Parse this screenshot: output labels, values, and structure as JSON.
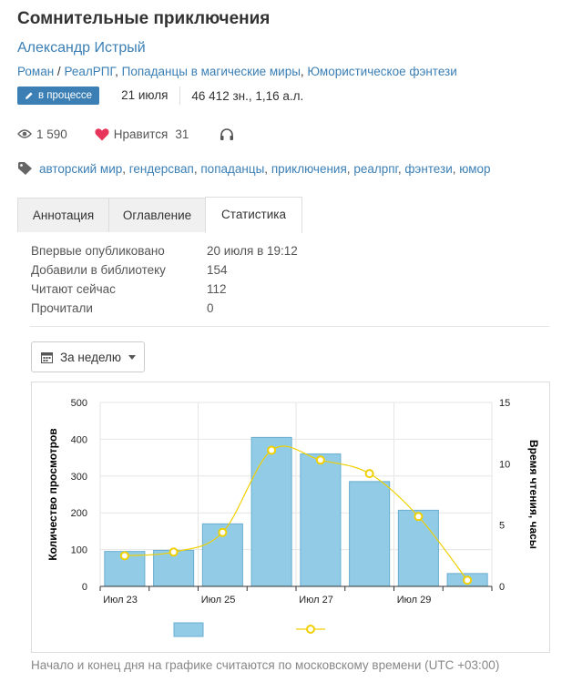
{
  "book": {
    "title": "Сомнительные приключения",
    "author": "Александр Истрый",
    "genres": [
      "Роман",
      "РеалРПГ",
      "Попаданцы в магические миры",
      "Юмористическое фэнтези"
    ],
    "status": "в процессе",
    "date": "21 июля",
    "size": "46 412 зн., 1,16 а.л."
  },
  "counters": {
    "views": "1 590",
    "likes_label": "Нравится",
    "likes": "31"
  },
  "tags": [
    "авторский мир",
    "гендерсвап",
    "попаданцы",
    "приключения",
    "реалрпг",
    "фэнтези",
    "юмор"
  ],
  "tabs": [
    {
      "label": "Аннотация"
    },
    {
      "label": "Оглавление"
    },
    {
      "label": "Статистика"
    }
  ],
  "stats": [
    {
      "label": "Впервые опубликовано",
      "value": "20 июля в 19:12"
    },
    {
      "label": "Добавили в библиотеку",
      "value": "154"
    },
    {
      "label": "Читают сейчас",
      "value": "112"
    },
    {
      "label": "Прочитали",
      "value": "0"
    }
  ],
  "period": {
    "label": "За неделю"
  },
  "chart_data": {
    "type": "bar",
    "categories": [
      "Июл 23",
      "Июл 24",
      "Июл 25",
      "Июл 26",
      "Июл 27",
      "Июл 28",
      "Июл 29",
      "Июл 30"
    ],
    "x_tick_labels": [
      "Июл 23",
      "Июл 25",
      "Июл 27",
      "Июл 29"
    ],
    "series": [
      {
        "type": "bar",
        "axis": "left",
        "values": [
          95,
          98,
          170,
          405,
          360,
          285,
          207,
          35
        ]
      },
      {
        "type": "line",
        "axis": "right",
        "values": [
          2.5,
          2.8,
          4.4,
          11.1,
          10.3,
          9.2,
          5.7,
          0.5
        ]
      }
    ],
    "ylabel": "Количество просмотров",
    "y2label": "Время чтения, часы",
    "ylim": [
      0,
      500
    ],
    "y2lim": [
      0,
      15
    ],
    "yticks": [
      0,
      100,
      200,
      300,
      400,
      500
    ],
    "y2ticks": [
      0,
      5,
      10,
      15
    ],
    "grid": true,
    "legend": "bottom"
  },
  "footnote": "Начало и конец дня на графике считаются по московскому времени (UTC +03:00)",
  "colors": {
    "link": "#3b7fb5",
    "bar": "#92cbe6",
    "bar_border": "#6aaed0",
    "line": "#f0d000",
    "heart": "#e8335a"
  },
  "icons": [
    "pencil-icon",
    "eye-icon",
    "heart-icon",
    "headphones-icon",
    "tag-icon",
    "calendar-icon",
    "caret-down-icon"
  ]
}
